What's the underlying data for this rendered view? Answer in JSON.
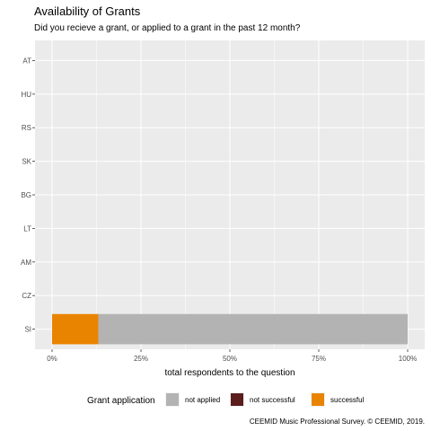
{
  "chart_data": {
    "type": "bar",
    "orientation": "horizontal",
    "stacked": true,
    "title": "Availability of Grants",
    "subtitle": "Did you recieve a grant, or applied to a grant in the past 12 month?",
    "xlabel": "total respondents to the question",
    "ylabel": "",
    "xlim": [
      0,
      100
    ],
    "x_ticks": [
      "0%",
      "25%",
      "50%",
      "75%",
      "100%"
    ],
    "categories": [
      "AT",
      "HU",
      "RS",
      "SK",
      "BG",
      "LT",
      "AM",
      "CZ",
      "SI"
    ],
    "series": [
      {
        "name": "not applied",
        "color": "#b3b3b3",
        "values": [
          0,
          0,
          0,
          0,
          0,
          0,
          0,
          0,
          87
        ]
      },
      {
        "name": "not successful",
        "color": "#5c1d1d",
        "values": [
          0,
          0,
          0,
          0,
          0,
          0,
          0,
          0,
          0
        ]
      },
      {
        "name": "successful",
        "color": "#e98400",
        "values": [
          0,
          0,
          0,
          0,
          0,
          0,
          0,
          0,
          13
        ]
      }
    ],
    "legend_title": "Grant application",
    "legend_position": "bottom",
    "grid": true,
    "panel_background": "#ebebeb",
    "caption": "CEEMID Music Professional Survey. © CEEMID, 2019."
  }
}
